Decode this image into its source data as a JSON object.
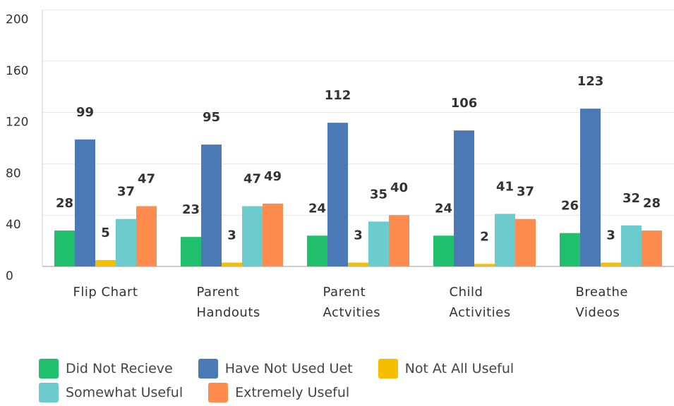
{
  "chart_data": {
    "type": "bar",
    "categories": [
      "Flip Chart",
      "Parent Handouts",
      "Parent Actvities",
      "Child Activities",
      "Breathe Videos"
    ],
    "series": [
      {
        "name": "Did Not Recieve",
        "color": "#1fbf6b",
        "values": [
          28,
          23,
          24,
          24,
          26
        ]
      },
      {
        "name": "Have Not Used Uet",
        "color": "#4a79b5",
        "values": [
          99,
          95,
          112,
          106,
          123
        ]
      },
      {
        "name": "Not At All Useful",
        "color": "#f5be00",
        "values": [
          5,
          3,
          3,
          2,
          3
        ]
      },
      {
        "name": "Somewhat Useful",
        "color": "#6ccbcc",
        "values": [
          37,
          47,
          35,
          41,
          32
        ]
      },
      {
        "name": "Extremely Useful",
        "color": "#fd8c4e",
        "values": [
          47,
          49,
          40,
          37,
          28
        ]
      }
    ],
    "ylim": [
      0,
      200
    ],
    "yticks": [
      0,
      40,
      80,
      120,
      160,
      200
    ],
    "grid": true
  }
}
